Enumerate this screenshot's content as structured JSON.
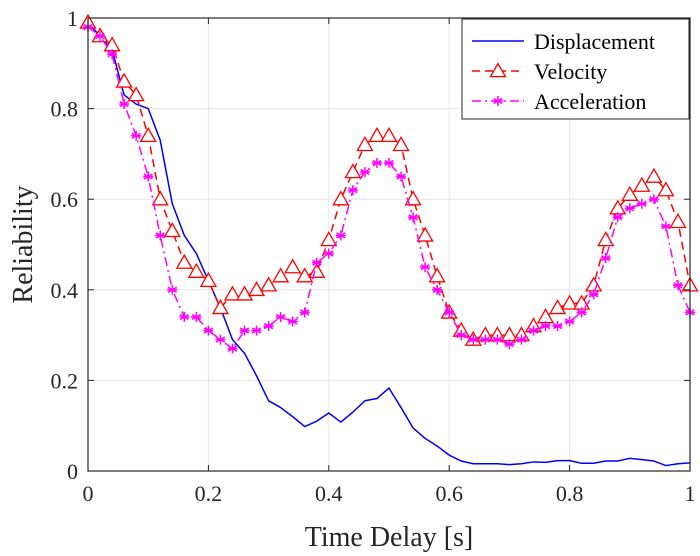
{
  "chart_data": {
    "type": "line",
    "title": "",
    "xlabel": "Time Delay [s]",
    "ylabel": "Reliability",
    "xlim": [
      0,
      1
    ],
    "ylim": [
      0,
      1
    ],
    "x_ticks": [
      0,
      0.2,
      0.4,
      0.6,
      0.8,
      1
    ],
    "x_tick_labels": [
      "0",
      "0.2",
      "0.4",
      "0.6",
      "0.8",
      "1"
    ],
    "y_ticks": [
      0,
      0.2,
      0.4,
      0.6,
      0.8,
      1
    ],
    "y_tick_labels": [
      "0",
      "0.2",
      "0.4",
      "0.6",
      "0.8",
      "1"
    ],
    "grid": true,
    "legend_position": "top-right",
    "x": [
      0,
      0.02,
      0.04,
      0.06,
      0.08,
      0.1,
      0.12,
      0.14,
      0.16,
      0.18,
      0.2,
      0.22,
      0.24,
      0.26,
      0.28,
      0.3,
      0.32,
      0.34,
      0.36,
      0.38,
      0.4,
      0.42,
      0.44,
      0.46,
      0.48,
      0.5,
      0.52,
      0.54,
      0.56,
      0.58,
      0.6,
      0.62,
      0.64,
      0.66,
      0.68,
      0.7,
      0.72,
      0.74,
      0.76,
      0.78,
      0.8,
      0.82,
      0.84,
      0.86,
      0.88,
      0.9,
      0.92,
      0.94,
      0.96,
      0.98,
      1
    ],
    "series": [
      {
        "name": "Displacement",
        "color": "#0000ff",
        "line_style": "solid",
        "marker": "none",
        "values": [
          0.99,
          0.96,
          0.93,
          0.83,
          0.81,
          0.8,
          0.73,
          0.59,
          0.52,
          0.48,
          0.42,
          0.36,
          0.29,
          0.26,
          0.21,
          0.155,
          0.14,
          0.12,
          0.098,
          0.11,
          0.128,
          0.108,
          0.13,
          0.155,
          0.16,
          0.183,
          0.14,
          0.095,
          0.072,
          0.055,
          0.035,
          0.022,
          0.016,
          0.016,
          0.016,
          0.014,
          0.016,
          0.02,
          0.019,
          0.023,
          0.023,
          0.017,
          0.017,
          0.022,
          0.022,
          0.028,
          0.025,
          0.022,
          0.012,
          0.016,
          0.018
        ]
      },
      {
        "name": "Velocity",
        "color": "#ff0000",
        "line_style": "dashed",
        "marker": "triangle",
        "values": [
          0.99,
          0.96,
          0.94,
          0.86,
          0.83,
          0.74,
          0.6,
          0.53,
          0.46,
          0.44,
          0.42,
          0.36,
          0.39,
          0.39,
          0.4,
          0.41,
          0.43,
          0.45,
          0.43,
          0.44,
          0.51,
          0.6,
          0.66,
          0.72,
          0.74,
          0.74,
          0.72,
          0.6,
          0.52,
          0.43,
          0.35,
          0.31,
          0.29,
          0.3,
          0.3,
          0.3,
          0.3,
          0.32,
          0.34,
          0.36,
          0.37,
          0.37,
          0.41,
          0.51,
          0.58,
          0.61,
          0.63,
          0.65,
          0.62,
          0.55,
          0.41
        ]
      },
      {
        "name": "Acceleration",
        "color": "#ff00ff",
        "line_style": "dashdot",
        "marker": "asterisk",
        "values": [
          0.98,
          0.96,
          0.92,
          0.81,
          0.74,
          0.65,
          0.52,
          0.4,
          0.34,
          0.34,
          0.31,
          0.29,
          0.27,
          0.31,
          0.31,
          0.32,
          0.34,
          0.33,
          0.35,
          0.46,
          0.48,
          0.52,
          0.62,
          0.66,
          0.68,
          0.68,
          0.65,
          0.56,
          0.45,
          0.4,
          0.35,
          0.3,
          0.29,
          0.29,
          0.29,
          0.28,
          0.29,
          0.31,
          0.32,
          0.32,
          0.33,
          0.35,
          0.39,
          0.47,
          0.56,
          0.58,
          0.59,
          0.6,
          0.54,
          0.41,
          0.35
        ]
      }
    ]
  }
}
